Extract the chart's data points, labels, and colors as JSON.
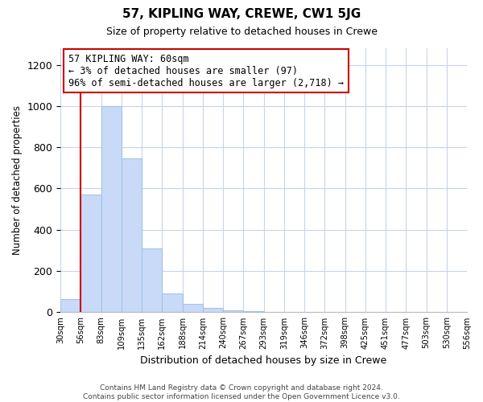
{
  "title": "57, KIPLING WAY, CREWE, CW1 5JG",
  "subtitle": "Size of property relative to detached houses in Crewe",
  "bar_heights": [
    65,
    570,
    1000,
    745,
    310,
    90,
    40,
    20,
    10,
    5
  ],
  "bar_labels": [
    "30sqm",
    "56sqm",
    "83sqm",
    "109sqm",
    "135sqm",
    "162sqm",
    "188sqm",
    "214sqm",
    "240sqm",
    "267sqm",
    "293sqm",
    "319sqm",
    "346sqm",
    "372sqm",
    "398sqm",
    "425sqm",
    "451sqm",
    "477sqm",
    "503sqm",
    "530sqm",
    "556sqm"
  ],
  "bar_color": "#c9daf8",
  "bar_edge_color": "#9fc5e8",
  "ylabel": "Number of detached properties",
  "xlabel": "Distribution of detached houses by size in Crewe",
  "ylim": [
    0,
    1280
  ],
  "yticks": [
    0,
    200,
    400,
    600,
    800,
    1000,
    1200
  ],
  "red_line_color": "#cc0000",
  "annotation_title": "57 KIPLING WAY: 60sqm",
  "annotation_line1": "← 3% of detached houses are smaller (97)",
  "annotation_line2": "96% of semi-detached houses are larger (2,718) →",
  "annotation_box_color": "#ffffff",
  "annotation_box_edge": "#cc0000",
  "footer_line1": "Contains HM Land Registry data © Crown copyright and database right 2024.",
  "footer_line2": "Contains public sector information licensed under the Open Government Licence v3.0.",
  "background_color": "#ffffff",
  "grid_color": "#c8d4e8"
}
